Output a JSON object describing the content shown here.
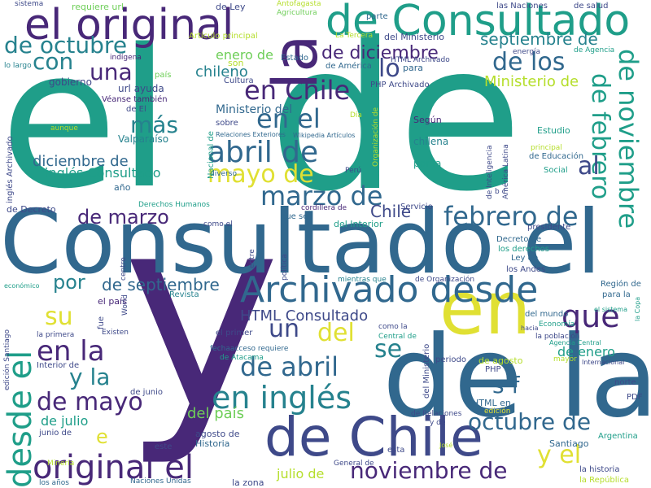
{
  "palette": {
    "yellow": "#e0e033",
    "lime": "#b5de2b",
    "green": "#6ece58",
    "teal": "#1f9e89",
    "cyan": "#26828e",
    "blue": "#31688e",
    "indigo": "#3e4989",
    "purple": "#482878",
    "dark": "#440154"
  },
  "words": [
    {
      "text": "el",
      "color": "#1f9e89"
    },
    {
      "text": "de",
      "color": "#1f9e89"
    },
    {
      "text": "y",
      "color": "#482878"
    },
    {
      "text": "Consultado el",
      "color": "#31688e"
    },
    {
      "text": "de la",
      "color": "#31688e"
    },
    {
      "text": "en",
      "color": "#e0e033"
    },
    {
      "text": "la",
      "color": "#482878"
    },
    {
      "text": "de Consultado",
      "color": "#1f9e89"
    },
    {
      "text": "de Chile",
      "color": "#3e4989"
    },
    {
      "text": "el original",
      "color": "#482878"
    },
    {
      "text": "Archivado desde",
      "color": "#31688e"
    },
    {
      "text": "desde el",
      "color": "#1f9e89"
    },
    {
      "text": "de noviembre",
      "color": "#1f9e89"
    },
    {
      "text": "de febrero",
      "color": "#1f9e89"
    },
    {
      "text": "original el",
      "color": "#482878"
    },
    {
      "text": "en inglés",
      "color": "#26828e"
    },
    {
      "text": "abril de",
      "color": "#31688e"
    },
    {
      "text": "en Chile",
      "color": "#482878"
    },
    {
      "text": "marzo de",
      "color": "#31688e"
    },
    {
      "text": "febrero de",
      "color": "#31688e"
    },
    {
      "text": "octubre de",
      "color": "#31688e"
    },
    {
      "text": "noviembre de",
      "color": "#482878"
    },
    {
      "text": "de octubre",
      "color": "#26828e"
    },
    {
      "text": "de abril",
      "color": "#31688e"
    },
    {
      "text": "de mayo",
      "color": "#482878"
    },
    {
      "text": "en la",
      "color": "#482878"
    },
    {
      "text": "mayo de",
      "color": "#e0e033"
    },
    {
      "text": "de los",
      "color": "#31688e"
    },
    {
      "text": "en el",
      "color": "#31688e"
    },
    {
      "text": "de marzo",
      "color": "#482878"
    },
    {
      "text": "de diciembre",
      "color": "#482878"
    },
    {
      "text": "septiembre de",
      "color": "#26828e"
    },
    {
      "text": "Ministerio de",
      "color": "#b5de2b"
    },
    {
      "text": "que",
      "color": "#482878"
    },
    {
      "text": "con",
      "color": "#26828e"
    },
    {
      "text": "una",
      "color": "#482878"
    },
    {
      "text": "más",
      "color": "#26828e"
    },
    {
      "text": "lo",
      "color": "#3e4989"
    },
    {
      "text": "al",
      "color": "#3e4989"
    },
    {
      "text": "del",
      "color": "#e0e033"
    },
    {
      "text": "un",
      "color": "#3e4989"
    },
    {
      "text": "se",
      "color": "#26828e"
    },
    {
      "text": "su",
      "color": "#e0e033"
    },
    {
      "text": "y la",
      "color": "#26828e"
    },
    {
      "text": "y el",
      "color": "#e0e033"
    },
    {
      "text": "s f",
      "color": "#31688e"
    },
    {
      "text": "por",
      "color": "#26828e"
    },
    {
      "text": "de septiembre",
      "color": "#31688e"
    },
    {
      "text": "HTML Consultado",
      "color": "#3e4989"
    },
    {
      "text": "de enero",
      "color": "#1f9e89"
    },
    {
      "text": "en el",
      "color": "#31688e"
    },
    {
      "text": "del país",
      "color": "#6ece58"
    },
    {
      "text": "de julio",
      "color": "#1f9e89"
    },
    {
      "text": "julio de",
      "color": "#b5de2b"
    },
    {
      "text": "e",
      "color": "#e0e033"
    },
    {
      "text": "Chile",
      "color": "#3e4989"
    },
    {
      "text": "diciembre de",
      "color": "#31688e"
    },
    {
      "text": "inglés Consultado",
      "color": "#1f9e89"
    },
    {
      "text": "chileno",
      "color": "#26828e"
    },
    {
      "text": "enero de",
      "color": "#6ece58"
    },
    {
      "text": "Ministerio del",
      "color": "#31688e"
    },
    {
      "text": "gobierno",
      "color": "#3e4989"
    },
    {
      "text": "Valparaíso",
      "color": "#26828e"
    },
    {
      "text": "url ayuda",
      "color": "#3e4989"
    },
    {
      "text": "Véanse también",
      "color": "#482878"
    },
    {
      "text": "de El",
      "color": "#3e4989"
    },
    {
      "text": "país",
      "color": "#6ece58"
    },
    {
      "text": "requiere url",
      "color": "#6ece58"
    },
    {
      "text": "de Ley",
      "color": "#3e4989"
    },
    {
      "text": "sistema",
      "color": "#3e4989"
    },
    {
      "text": "Antofagasta",
      "color": "#b5de2b"
    },
    {
      "text": "Agricultura",
      "color": "#6ece58"
    },
    {
      "text": "las Naciones",
      "color": "#3e4989"
    },
    {
      "text": "de salud",
      "color": "#3e4989"
    },
    {
      "text": "parte",
      "color": "#31688e"
    },
    {
      "text": "Artículo principal",
      "color": "#b5de2b"
    },
    {
      "text": "La Tercera",
      "color": "#b5de2b"
    },
    {
      "text": "del Ministerio",
      "color": "#3e4989"
    },
    {
      "text": "de Agencia",
      "color": "#1f9e89"
    },
    {
      "text": "energía",
      "color": "#3e4989"
    },
    {
      "text": "indígena",
      "color": "#482878"
    },
    {
      "text": "son",
      "color": "#b5de2b"
    },
    {
      "text": "Estado",
      "color": "#31688e"
    },
    {
      "text": "de América",
      "color": "#31688e"
    },
    {
      "text": "HTML Archivado",
      "color": "#3e4989"
    },
    {
      "text": "para",
      "color": "#31688e"
    },
    {
      "text": "PHP Archivado",
      "color": "#3e4989"
    },
    {
      "text": "Cultura",
      "color": "#3e4989"
    },
    {
      "text": "lo largo",
      "color": "#26828e"
    },
    {
      "text": "Relaciones Exteriores",
      "color": "#31688e"
    },
    {
      "text": "Wikipedia Artículos",
      "color": "#31688e"
    },
    {
      "text": "Día",
      "color": "#b5de2b"
    },
    {
      "text": "sobre",
      "color": "#3e4989"
    },
    {
      "text": "Según",
      "color": "#482878"
    },
    {
      "text": "chilena",
      "color": "#26828e"
    },
    {
      "text": "Estudio",
      "color": "#1f9e89"
    },
    {
      "text": "de Educación",
      "color": "#31688e"
    },
    {
      "text": "Perú",
      "color": "#3e4989"
    },
    {
      "text": "por la",
      "color": "#1f9e89"
    },
    {
      "text": "Social",
      "color": "#1f9e89"
    },
    {
      "text": "diverso",
      "color": "#31688e"
    },
    {
      "text": "año",
      "color": "#31688e"
    },
    {
      "text": "Derechos Humanos",
      "color": "#1f9e89"
    },
    {
      "text": "cordillera de",
      "color": "#482878"
    },
    {
      "text": "de Decreto",
      "color": "#3e4989"
    },
    {
      "text": "que se",
      "color": "#31688e"
    },
    {
      "text": "Servicio",
      "color": "#3e4989"
    },
    {
      "text": "del Interior",
      "color": "#1f9e89"
    },
    {
      "text": "presidente",
      "color": "#3e4989"
    },
    {
      "text": "Decreto de",
      "color": "#31688e"
    },
    {
      "text": "los derechos",
      "color": "#1f9e89"
    },
    {
      "text": "Ley de",
      "color": "#31688e"
    },
    {
      "text": "los Andes",
      "color": "#3e4989"
    },
    {
      "text": "Región de",
      "color": "#31688e"
    },
    {
      "text": "para la",
      "color": "#31688e"
    },
    {
      "text": "económico",
      "color": "#1f9e89"
    },
    {
      "text": "como el",
      "color": "#3e4989"
    },
    {
      "text": "el país",
      "color": "#482878"
    },
    {
      "text": "Revista",
      "color": "#26828e"
    },
    {
      "text": "mientras que",
      "color": "#26828e"
    },
    {
      "text": "de Organización",
      "color": "#3e4989"
    },
    {
      "text": "del mundo",
      "color": "#31688e"
    },
    {
      "text": "la primera",
      "color": "#3e4989"
    },
    {
      "text": "el primer",
      "color": "#3e4989"
    },
    {
      "text": "la población",
      "color": "#3e4989"
    },
    {
      "text": "fechaacceso requiere",
      "color": "#31688e"
    },
    {
      "text": "de Atacama",
      "color": "#1f9e89"
    },
    {
      "text": "Central de",
      "color": "#1f9e89"
    },
    {
      "text": "como la",
      "color": "#3e4989"
    },
    {
      "text": "hacia",
      "color": "#3e4989"
    },
    {
      "text": "Agencia Central",
      "color": "#1f9e89"
    },
    {
      "text": "Internacional",
      "color": "#3e4989"
    },
    {
      "text": "Interior de",
      "color": "#3e4989"
    },
    {
      "text": "periodo",
      "color": "#3e4989"
    },
    {
      "text": "de agosto",
      "color": "#b5de2b"
    },
    {
      "text": "mayor",
      "color": "#b5de2b"
    },
    {
      "text": "de junio",
      "color": "#3e4989"
    },
    {
      "text": "PHP",
      "color": "#3e4989"
    },
    {
      "text": "norte",
      "color": "#3e4989"
    },
    {
      "text": "PDF",
      "color": "#3e4989"
    },
    {
      "text": "HTML en",
      "color": "#31688e"
    },
    {
      "text": "edición",
      "color": "#e0e033"
    },
    {
      "text": "de Relaciones",
      "color": "#3e4989"
    },
    {
      "text": "y de",
      "color": "#3e4989"
    },
    {
      "text": "Santiago",
      "color": "#31688e"
    },
    {
      "text": "Argentina",
      "color": "#1f9e89"
    },
    {
      "text": "agosto de",
      "color": "#3e4989"
    },
    {
      "text": "Historia",
      "color": "#31688e"
    },
    {
      "text": "Minería",
      "color": "#b5de2b"
    },
    {
      "text": "los años",
      "color": "#31688e"
    },
    {
      "text": "Naciones Unidas",
      "color": "#31688e"
    },
    {
      "text": "la zona",
      "color": "#3e4989"
    },
    {
      "text": "General de",
      "color": "#3e4989"
    },
    {
      "text": "la historia",
      "color": "#3e4989"
    },
    {
      "text": "la República",
      "color": "#b5de2b"
    },
    {
      "text": "junio de",
      "color": "#3e4989"
    },
    {
      "text": "este",
      "color": "#3e4989"
    },
    {
      "text": "esta",
      "color": "#3e4989"
    },
    {
      "text": "José",
      "color": "#b5de2b"
    },
    {
      "text": "de Inteligencia",
      "color": "#3e4989"
    },
    {
      "text": "América Latina",
      "color": "#3e4989"
    },
    {
      "text": "del Ministerio",
      "color": "#3e4989"
    },
    {
      "text": "inglés Archivado",
      "color": "#3e4989"
    },
    {
      "text": "edición Santiago",
      "color": "#3e4989"
    },
    {
      "text": "Nacional de",
      "color": "#1f9e89"
    },
    {
      "text": "Organización de",
      "color": "#b5de2b"
    },
    {
      "text": "entre",
      "color": "#3e4989"
    },
    {
      "text": "política",
      "color": "#3e4989"
    },
    {
      "text": "centro",
      "color": "#3e4989"
    },
    {
      "text": "World",
      "color": "#3e4989"
    },
    {
      "text": "fue",
      "color": "#3e4989"
    },
    {
      "text": "Existen",
      "color": "#3e4989"
    },
    {
      "text": "aunque",
      "color": "#b5de2b"
    },
    {
      "text": "b c",
      "color": "#3e4989"
    },
    {
      "text": "principal",
      "color": "#b5de2b"
    },
    {
      "text": "Economía",
      "color": "#1f9e89"
    },
    {
      "text": "el sistema",
      "color": "#1f9e89"
    },
    {
      "text": "la Copa",
      "color": "#1f9e89"
    }
  ]
}
